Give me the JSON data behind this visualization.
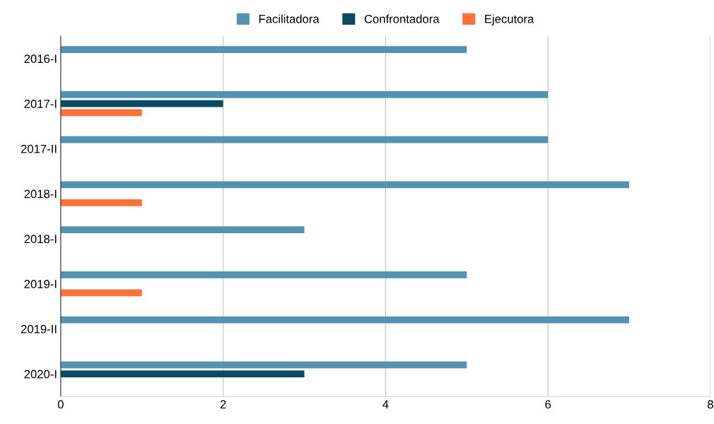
{
  "chart_data": {
    "type": "bar",
    "orientation": "horizontal",
    "categories": [
      "2016-I",
      "2017-I",
      "2017-II",
      "2018-I",
      "2018-I",
      "2019-I",
      "2019-II",
      "2020-I"
    ],
    "series": [
      {
        "name": "Facilitadora",
        "color": "#5591b0",
        "values": [
          5,
          6,
          6,
          7,
          3,
          5,
          7,
          5
        ]
      },
      {
        "name": "Confrontadora",
        "color": "#0b4a63",
        "values": [
          null,
          2,
          null,
          null,
          null,
          null,
          null,
          3
        ]
      },
      {
        "name": "Ejecutora",
        "color": "#ff7139",
        "values": [
          null,
          1,
          null,
          1,
          null,
          1,
          null,
          null
        ]
      }
    ],
    "xlim": [
      0,
      8
    ],
    "xticks": [
      0,
      2,
      4,
      6,
      8
    ],
    "grid": "x",
    "legend": "top"
  }
}
